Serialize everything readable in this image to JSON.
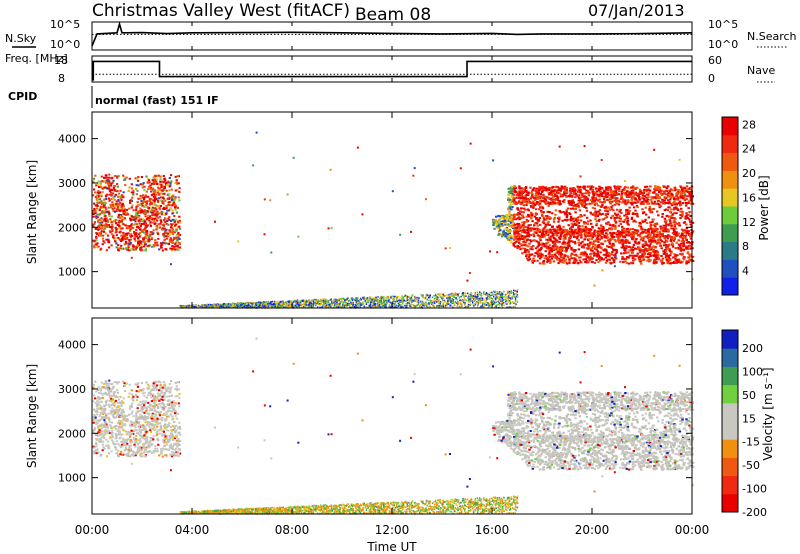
{
  "header": {
    "title": "Christmas Valley West (fitACF)",
    "beam": "Beam 08",
    "date": "07/Jan/2013"
  },
  "colors": {
    "trace": "#000000",
    "ground_scatter": "#c8c8c0"
  },
  "chart_data": [
    {
      "type": "line",
      "name": "sky-noise-panel",
      "left_label": "N.Sky",
      "right_label": "N.Search",
      "left_ticks": [
        "10^5",
        "10^0"
      ],
      "right_ticks": [
        "10^5",
        "10^0"
      ],
      "x_hours": [
        0,
        0.2,
        1,
        1.1,
        1.2,
        2,
        3,
        4,
        6,
        8,
        10,
        12,
        14,
        16,
        17,
        18,
        20,
        22,
        24
      ],
      "n_sky_rel": [
        0.15,
        0.62,
        0.66,
        1.0,
        0.66,
        0.67,
        0.63,
        0.66,
        0.67,
        0.68,
        0.66,
        0.64,
        0.62,
        0.64,
        0.6,
        0.62,
        0.62,
        0.63,
        0.66
      ],
      "n_search_rel": [
        0.6,
        0.6,
        0.6,
        0.6,
        0.6,
        0.6,
        0.6,
        0.6,
        0.6,
        0.6,
        0.6,
        0.6,
        0.6,
        0.6,
        0.6,
        0.6,
        0.6,
        0.6,
        0.6
      ]
    },
    {
      "type": "line",
      "name": "frequency-panel",
      "left_label": "Freq. [MHz]",
      "right_label": "Nave",
      "left_ticks": [
        18,
        8
      ],
      "right_ticks": [
        60,
        0
      ],
      "freq_segments": [
        {
          "x0": 0,
          "x1": 0.05,
          "mhz": 8
        },
        {
          "x0": 0.05,
          "x1": 2.7,
          "mhz": 16.5
        },
        {
          "x0": 2.7,
          "x1": 15.0,
          "mhz": 9.5
        },
        {
          "x0": 15.0,
          "x1": 24,
          "mhz": 16.5
        }
      ],
      "nave_level": 18
    },
    {
      "type": "heatmap",
      "name": "power-panel",
      "ylabel": "Slant Range [km]",
      "ylim": [
        180,
        4600
      ],
      "yticks": [
        1000,
        2000,
        3000,
        4000
      ],
      "colorbar_label": "Power [dB]",
      "colorbar_ticks": [
        "4",
        "8",
        "12",
        "16",
        "20",
        "24",
        "28"
      ]
    },
    {
      "type": "heatmap",
      "name": "velocity-panel",
      "ylabel": "Slant Range [km]",
      "xlabel": "Time UT",
      "ylim": [
        180,
        4600
      ],
      "yticks": [
        1000,
        2000,
        3000,
        4000
      ],
      "xlim": [
        0,
        24
      ],
      "xticks": [
        "00:00",
        "04:00",
        "08:00",
        "12:00",
        "16:00",
        "20:00",
        "00:00"
      ],
      "colorbar_label": "Velocity [m s⁻¹]",
      "colorbar_ticks": [
        "200",
        "100",
        "50",
        "15",
        "-15",
        "-50",
        "-100",
        "-200"
      ]
    }
  ],
  "cpid": {
    "label": "CPID",
    "text": "normal (fast) 151 IF"
  }
}
